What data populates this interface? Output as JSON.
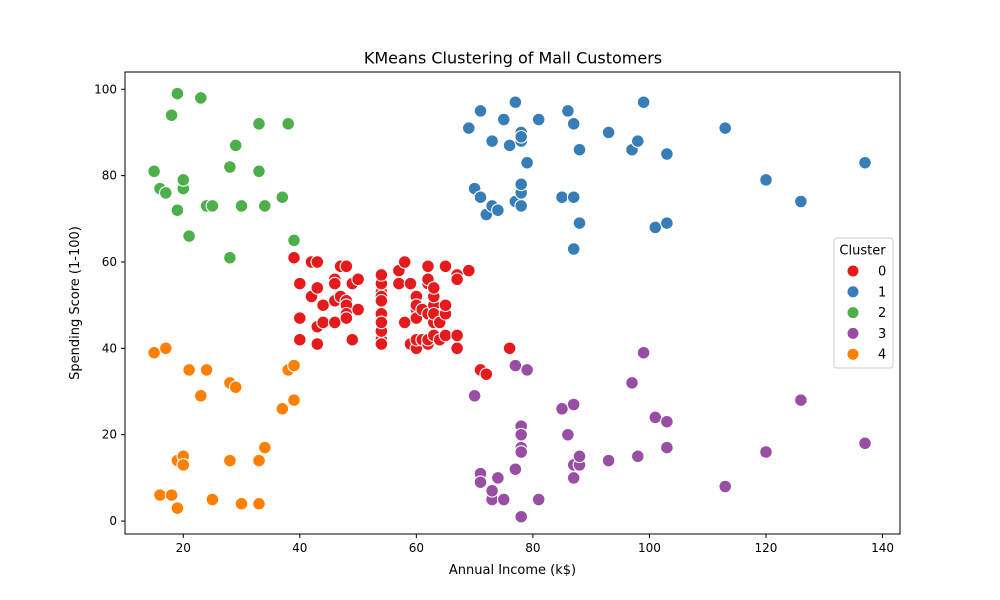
{
  "chart_data": {
    "type": "scatter",
    "title": "KMeans Clustering of Mall Customers",
    "xlabel": "Annual Income (k$)",
    "ylabel": "Spending Score (1-100)",
    "xlim": [
      10,
      143
    ],
    "ylim": [
      -3,
      104
    ],
    "xticks": [
      20,
      40,
      60,
      80,
      100,
      120,
      140
    ],
    "yticks": [
      0,
      20,
      40,
      60,
      80,
      100
    ],
    "grid": false,
    "legend": {
      "title": "Cluster",
      "placement": "right"
    },
    "series": [
      {
        "name": "0",
        "color": "#e41a1c",
        "points": [
          [
            39,
            61
          ],
          [
            40,
            55
          ],
          [
            40,
            47
          ],
          [
            40,
            42
          ],
          [
            42,
            52
          ],
          [
            42,
            60
          ],
          [
            43,
            54
          ],
          [
            43,
            60
          ],
          [
            43,
            45
          ],
          [
            43,
            41
          ],
          [
            44,
            50
          ],
          [
            44,
            46
          ],
          [
            46,
            51
          ],
          [
            46,
            46
          ],
          [
            46,
            56
          ],
          [
            46,
            55
          ],
          [
            47,
            52
          ],
          [
            47,
            59
          ],
          [
            48,
            51
          ],
          [
            48,
            59
          ],
          [
            48,
            50
          ],
          [
            48,
            48
          ],
          [
            48,
            47
          ],
          [
            49,
            55
          ],
          [
            49,
            42
          ],
          [
            50,
            49
          ],
          [
            50,
            56
          ],
          [
            54,
            47
          ],
          [
            54,
            54
          ],
          [
            54,
            53
          ],
          [
            54,
            48
          ],
          [
            54,
            52
          ],
          [
            54,
            42
          ],
          [
            54,
            51
          ],
          [
            54,
            55
          ],
          [
            54,
            41
          ],
          [
            54,
            44
          ],
          [
            54,
            57
          ],
          [
            54,
            46
          ],
          [
            57,
            58
          ],
          [
            57,
            55
          ],
          [
            58,
            60
          ],
          [
            58,
            46
          ],
          [
            59,
            55
          ],
          [
            59,
            41
          ],
          [
            60,
            49
          ],
          [
            60,
            40
          ],
          [
            60,
            42
          ],
          [
            60,
            52
          ],
          [
            60,
            47
          ],
          [
            60,
            50
          ],
          [
            61,
            42
          ],
          [
            61,
            49
          ],
          [
            62,
            41
          ],
          [
            62,
            48
          ],
          [
            62,
            59
          ],
          [
            62,
            55
          ],
          [
            62,
            56
          ],
          [
            62,
            42
          ],
          [
            63,
            50
          ],
          [
            63,
            46
          ],
          [
            63,
            43
          ],
          [
            63,
            48
          ],
          [
            63,
            52
          ],
          [
            63,
            54
          ],
          [
            64,
            42
          ],
          [
            64,
            46
          ],
          [
            65,
            48
          ],
          [
            65,
            50
          ],
          [
            65,
            43
          ],
          [
            65,
            59
          ],
          [
            67,
            43
          ],
          [
            67,
            57
          ],
          [
            67,
            56
          ],
          [
            67,
            40
          ],
          [
            69,
            58
          ],
          [
            71,
            35
          ],
          [
            72,
            34
          ],
          [
            76,
            40
          ]
        ]
      },
      {
        "name": "1",
        "color": "#377eb8",
        "points": [
          [
            69,
            91
          ],
          [
            70,
            77
          ],
          [
            71,
            95
          ],
          [
            71,
            75
          ],
          [
            72,
            71
          ],
          [
            73,
            88
          ],
          [
            73,
            73
          ],
          [
            74,
            72
          ],
          [
            75,
            93
          ],
          [
            76,
            87
          ],
          [
            77,
            97
          ],
          [
            77,
            74
          ],
          [
            78,
            90
          ],
          [
            78,
            88
          ],
          [
            78,
            76
          ],
          [
            78,
            89
          ],
          [
            78,
            78
          ],
          [
            78,
            73
          ],
          [
            79,
            83
          ],
          [
            81,
            93
          ],
          [
            85,
            75
          ],
          [
            86,
            95
          ],
          [
            87,
            63
          ],
          [
            87,
            75
          ],
          [
            87,
            92
          ],
          [
            88,
            86
          ],
          [
            88,
            69
          ],
          [
            93,
            90
          ],
          [
            97,
            86
          ],
          [
            98,
            88
          ],
          [
            99,
            97
          ],
          [
            101,
            68
          ],
          [
            103,
            85
          ],
          [
            103,
            69
          ],
          [
            113,
            91
          ],
          [
            120,
            79
          ],
          [
            126,
            74
          ],
          [
            137,
            83
          ]
        ]
      },
      {
        "name": "2",
        "color": "#4daf4a",
        "points": [
          [
            15,
            81
          ],
          [
            16,
            77
          ],
          [
            17,
            76
          ],
          [
            18,
            94
          ],
          [
            19,
            72
          ],
          [
            19,
            99
          ],
          [
            20,
            77
          ],
          [
            20,
            79
          ],
          [
            21,
            66
          ],
          [
            23,
            98
          ],
          [
            24,
            73
          ],
          [
            25,
            73
          ],
          [
            28,
            82
          ],
          [
            28,
            61
          ],
          [
            29,
            87
          ],
          [
            30,
            73
          ],
          [
            33,
            92
          ],
          [
            33,
            81
          ],
          [
            34,
            73
          ],
          [
            37,
            75
          ],
          [
            38,
            92
          ],
          [
            39,
            65
          ]
        ]
      },
      {
        "name": "3",
        "color": "#984ea3",
        "points": [
          [
            70,
            29
          ],
          [
            71,
            11
          ],
          [
            71,
            9
          ],
          [
            73,
            5
          ],
          [
            73,
            7
          ],
          [
            74,
            10
          ],
          [
            75,
            5
          ],
          [
            77,
            12
          ],
          [
            77,
            36
          ],
          [
            78,
            22
          ],
          [
            78,
            17
          ],
          [
            78,
            20
          ],
          [
            78,
            16
          ],
          [
            78,
            1
          ],
          [
            79,
            35
          ],
          [
            81,
            5
          ],
          [
            85,
            26
          ],
          [
            86,
            20
          ],
          [
            87,
            27
          ],
          [
            87,
            13
          ],
          [
            87,
            10
          ],
          [
            88,
            13
          ],
          [
            88,
            15
          ],
          [
            93,
            14
          ],
          [
            97,
            32
          ],
          [
            98,
            15
          ],
          [
            99,
            39
          ],
          [
            101,
            24
          ],
          [
            103,
            23
          ],
          [
            103,
            17
          ],
          [
            113,
            8
          ],
          [
            120,
            16
          ],
          [
            126,
            28
          ],
          [
            137,
            18
          ]
        ]
      },
      {
        "name": "4",
        "color": "#ff7f00",
        "points": [
          [
            15,
            39
          ],
          [
            16,
            6
          ],
          [
            17,
            40
          ],
          [
            18,
            6
          ],
          [
            19,
            3
          ],
          [
            19,
            14
          ],
          [
            20,
            15
          ],
          [
            20,
            13
          ],
          [
            21,
            35
          ],
          [
            23,
            29
          ],
          [
            24,
            35
          ],
          [
            25,
            5
          ],
          [
            28,
            14
          ],
          [
            28,
            32
          ],
          [
            29,
            31
          ],
          [
            30,
            4
          ],
          [
            33,
            4
          ],
          [
            33,
            14
          ],
          [
            34,
            17
          ],
          [
            37,
            26
          ],
          [
            38,
            35
          ],
          [
            39,
            36
          ],
          [
            39,
            28
          ]
        ]
      }
    ]
  }
}
